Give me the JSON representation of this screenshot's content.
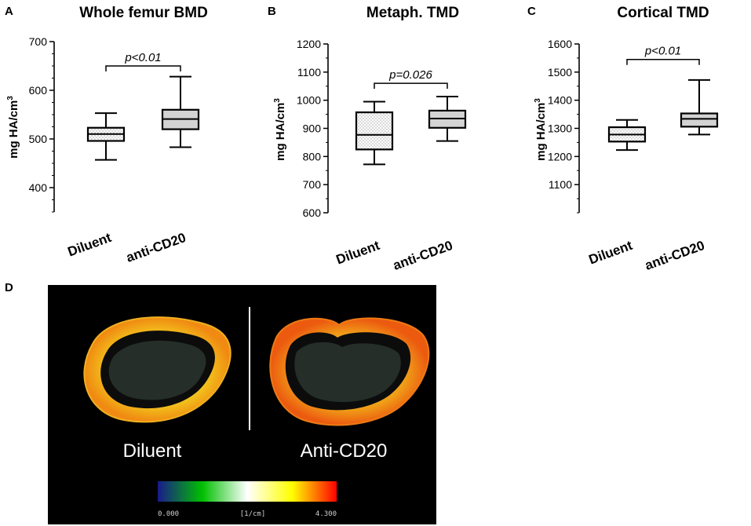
{
  "chart_data": [
    {
      "panel": "A",
      "type": "box",
      "title": "Whole femur BMD",
      "ylabel": "mg HA/cm",
      "ylabel_superscript": "3",
      "ylim": [
        350,
        700
      ],
      "yticks": [
        400,
        500,
        600,
        700
      ],
      "minor_step": 25,
      "categories": [
        "Diluent",
        "anti-CD20"
      ],
      "boxes": [
        {
          "name": "Diluent",
          "min": 457,
          "q1": 496,
          "median": 510,
          "q3": 523,
          "max": 553,
          "fill": "dotted"
        },
        {
          "name": "anti-CD20",
          "min": 483,
          "q1": 520,
          "median": 541,
          "q3": 560,
          "max": 628,
          "fill": "gray"
        }
      ],
      "significance": {
        "label": "p<0.01",
        "y": 650
      }
    },
    {
      "panel": "B",
      "type": "box",
      "title": "Metaph. TMD",
      "ylabel": "mg HA/cm",
      "ylabel_superscript": "3",
      "ylim": [
        600,
        1200
      ],
      "yticks": [
        600,
        700,
        800,
        900,
        1000,
        1100,
        1200
      ],
      "minor_step": 50,
      "categories": [
        "Diluent",
        "anti-CD20"
      ],
      "boxes": [
        {
          "name": "Diluent",
          "min": 772,
          "q1": 825,
          "median": 877,
          "q3": 957,
          "max": 995,
          "fill": "dotted"
        },
        {
          "name": "anti-CD20",
          "min": 855,
          "q1": 902,
          "median": 935,
          "q3": 963,
          "max": 1013,
          "fill": "gray"
        }
      ],
      "significance": {
        "label": "p=0.026",
        "y": 1060
      }
    },
    {
      "panel": "C",
      "type": "box",
      "title": "Cortical TMD",
      "ylabel": "mg HA/cm",
      "ylabel_superscript": "3",
      "ylim": [
        1000,
        1600
      ],
      "yticks": [
        1100,
        1200,
        1300,
        1400,
        1500,
        1600
      ],
      "minor_step": 50,
      "categories": [
        "Diluent",
        "anti-CD20"
      ],
      "boxes": [
        {
          "name": "Diluent",
          "min": 1223,
          "q1": 1253,
          "median": 1278,
          "q3": 1304,
          "max": 1330,
          "fill": "dotted"
        },
        {
          "name": "anti-CD20",
          "min": 1278,
          "q1": 1306,
          "median": 1334,
          "q3": 1353,
          "max": 1472,
          "fill": "gray"
        }
      ],
      "significance": {
        "label": "p<0.01",
        "y": 1545
      }
    }
  ],
  "panel_d": {
    "letter": "D",
    "labels": [
      "Diluent",
      "Anti-CD20"
    ],
    "colorbar": {
      "min_label": "0.000",
      "unit_label": "[1/cm]",
      "max_label": "4.300",
      "colors": [
        "#1a1a8c",
        "#00c000",
        "#ffffff",
        "#ffff00",
        "#ff0000"
      ]
    }
  }
}
